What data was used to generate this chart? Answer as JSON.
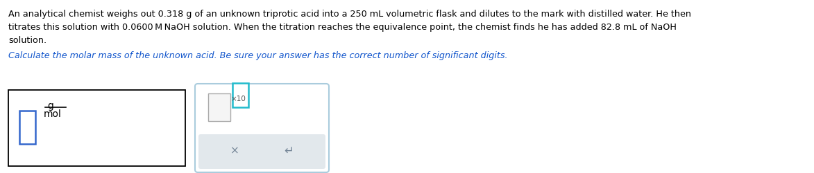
{
  "bg_color": "#ffffff",
  "text_color": "#000000",
  "blue_link_color": "#1155CC",
  "paragraph1_line1": "An analytical chemist weighs out 0.318 g of an unknown triprotic acid into a 250 mL volumetric flask and dilutes to the mark with distilled water. He then",
  "paragraph1_line2": "titrates this solution with 0.0600 M NaOH solution. When the titration reaches the equivalence point, the chemist finds he has added 82.8 mL of NaOH",
  "paragraph1_line3": "solution.",
  "paragraph2": "Calculate the molar mass of the unknown acid. Be sure your answer has the correct number of significant digits.",
  "unit_top": "g",
  "unit_bottom": "mol",
  "cross_symbol": "×",
  "undo_symbol": "↵",
  "fontsize_main": 9.2,
  "fontsize_para2": 9.2,
  "box1_border": "#000000",
  "box2_border": "#AACCDD",
  "input_blue": "#3366CC",
  "input_gray": "#AAAAAA",
  "input_teal": "#22BBBB",
  "btn_bg": "#E2E8EC",
  "btn_text": "#778899"
}
